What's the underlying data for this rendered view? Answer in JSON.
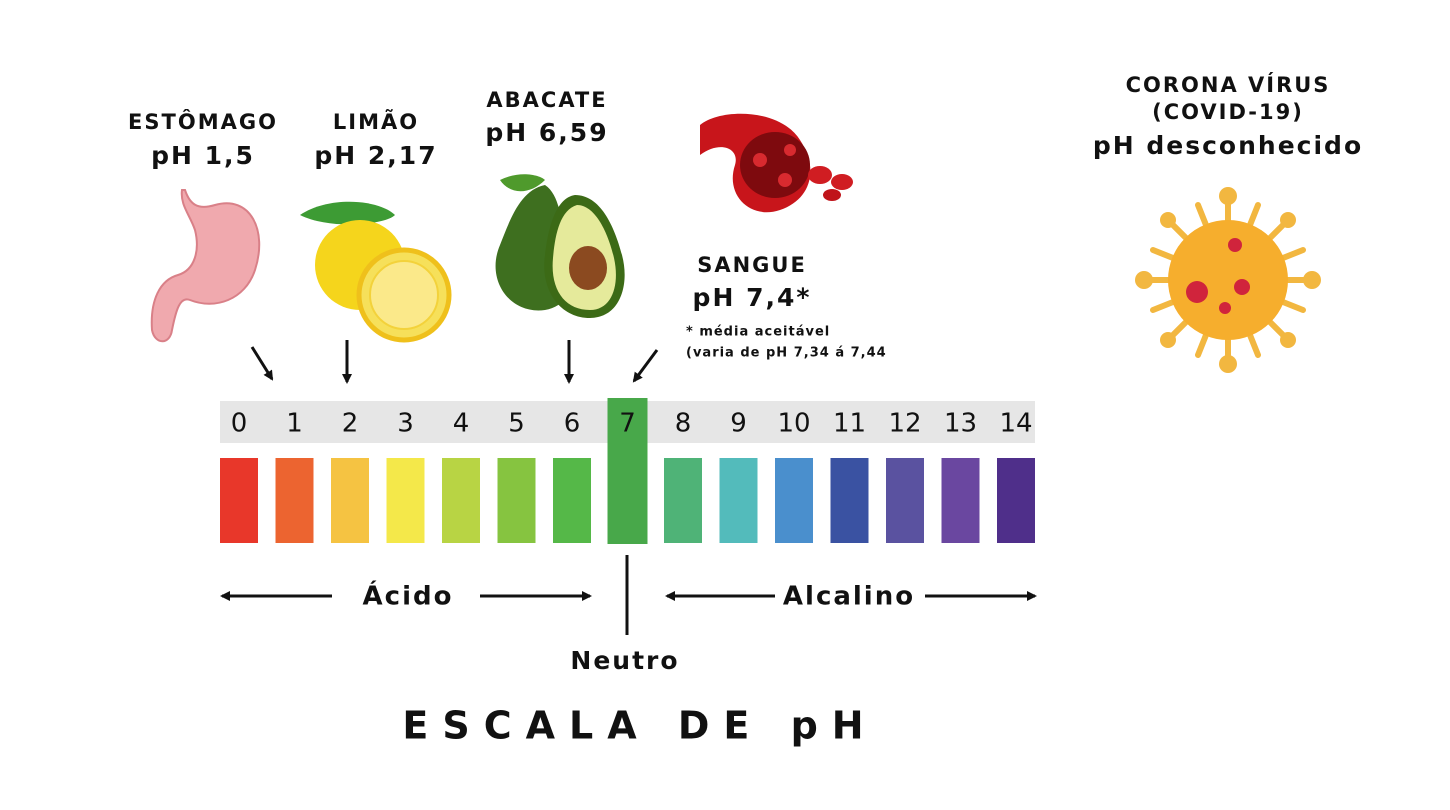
{
  "items": [
    {
      "name": "ESTÔMAGO",
      "ph": "pH 1,5"
    },
    {
      "name": "LIMÃO",
      "ph": "pH 2,17"
    },
    {
      "name": "ABACATE",
      "ph": "pH 6,59"
    },
    {
      "name": "SANGUE",
      "ph": "pH 7,4*",
      "note": "* média aceitável",
      "range": "(varia de pH 7,34 á 7,44"
    }
  ],
  "virus": {
    "name": "CORONA VÍRUS",
    "code": "(COVID-19)",
    "ph": "pH desconhecido"
  },
  "scale": {
    "levels": [
      0,
      1,
      2,
      3,
      4,
      5,
      6,
      7,
      8,
      9,
      10,
      11,
      12,
      13,
      14
    ],
    "colors": [
      "#e8372a",
      "#ec6430",
      "#f5c342",
      "#f4e84a",
      "#b8d444",
      "#86c440",
      "#55b848",
      "#48a84a",
      "#4fb377",
      "#53bbbb",
      "#4a8fcd",
      "#3a52a2",
      "#5a52a0",
      "#6a47a0",
      "#4f2f8a"
    ],
    "neutral_index": 7
  },
  "acid": "Ácido",
  "alkaline": "Alcalino",
  "neutral": "Neutro",
  "title": "ESCALA DE pH"
}
